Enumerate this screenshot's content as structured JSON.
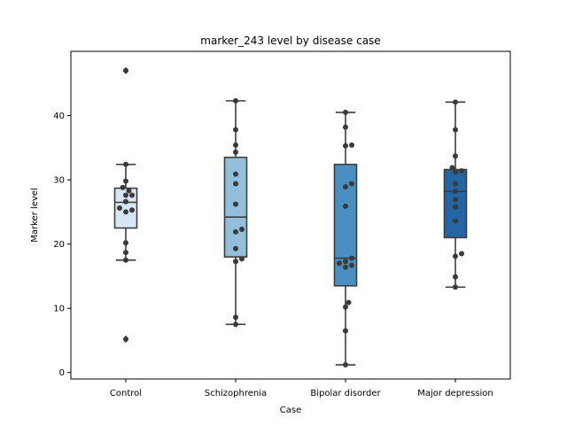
{
  "chart_data": {
    "type": "box",
    "title": "marker_243 level by disease case",
    "xlabel": "Case",
    "ylabel": "Marker level",
    "ylim": [
      -1,
      50
    ],
    "yticks": [
      0,
      10,
      20,
      30,
      40
    ],
    "grid": false,
    "categories": [
      "Control",
      "Schizophrenia",
      "Bipolar disorder",
      "Major depression"
    ],
    "colors": [
      "#d7e6f4",
      "#92c0dc",
      "#4a8fc2",
      "#2465a4"
    ],
    "boxes": [
      {
        "category": "Control",
        "whisker_low": 17.5,
        "q1": 22.5,
        "median": 26.5,
        "q3": 28.7,
        "whisker_high": 32.4,
        "outliers": [
          47.0,
          5.2
        ]
      },
      {
        "category": "Schizophrenia",
        "whisker_low": 7.5,
        "q1": 18.0,
        "median": 24.2,
        "q3": 33.5,
        "whisker_high": 42.3,
        "outliers": []
      },
      {
        "category": "Bipolar disorder",
        "whisker_low": 1.2,
        "q1": 13.5,
        "median": 17.8,
        "q3": 32.4,
        "whisker_high": 40.5,
        "outliers": []
      },
      {
        "category": "Major depression",
        "whisker_low": 13.3,
        "q1": 21.0,
        "median": 28.2,
        "q3": 31.6,
        "whisker_high": 42.1,
        "outliers": []
      }
    ],
    "points": [
      [
        47.0,
        32.4,
        29.8,
        28.8,
        28.3,
        27.6,
        27.6,
        26.6,
        25.6,
        25.3,
        25.0,
        20.2,
        18.7,
        17.5,
        5.2
      ],
      [
        42.3,
        37.8,
        35.4,
        34.3,
        30.9,
        29.4,
        26.2,
        22.3,
        21.9,
        19.3,
        17.7,
        17.3,
        8.6,
        7.5
      ],
      [
        40.5,
        38.2,
        35.4,
        35.3,
        29.4,
        28.9,
        25.9,
        17.8,
        17.3,
        17.0,
        16.7,
        16.4,
        10.9,
        10.2,
        6.5,
        1.2
      ],
      [
        42.1,
        37.8,
        33.7,
        31.9,
        31.4,
        31.2,
        29.4,
        28.2,
        26.9,
        25.8,
        23.6,
        18.5,
        18.1,
        14.9,
        13.3
      ]
    ]
  }
}
